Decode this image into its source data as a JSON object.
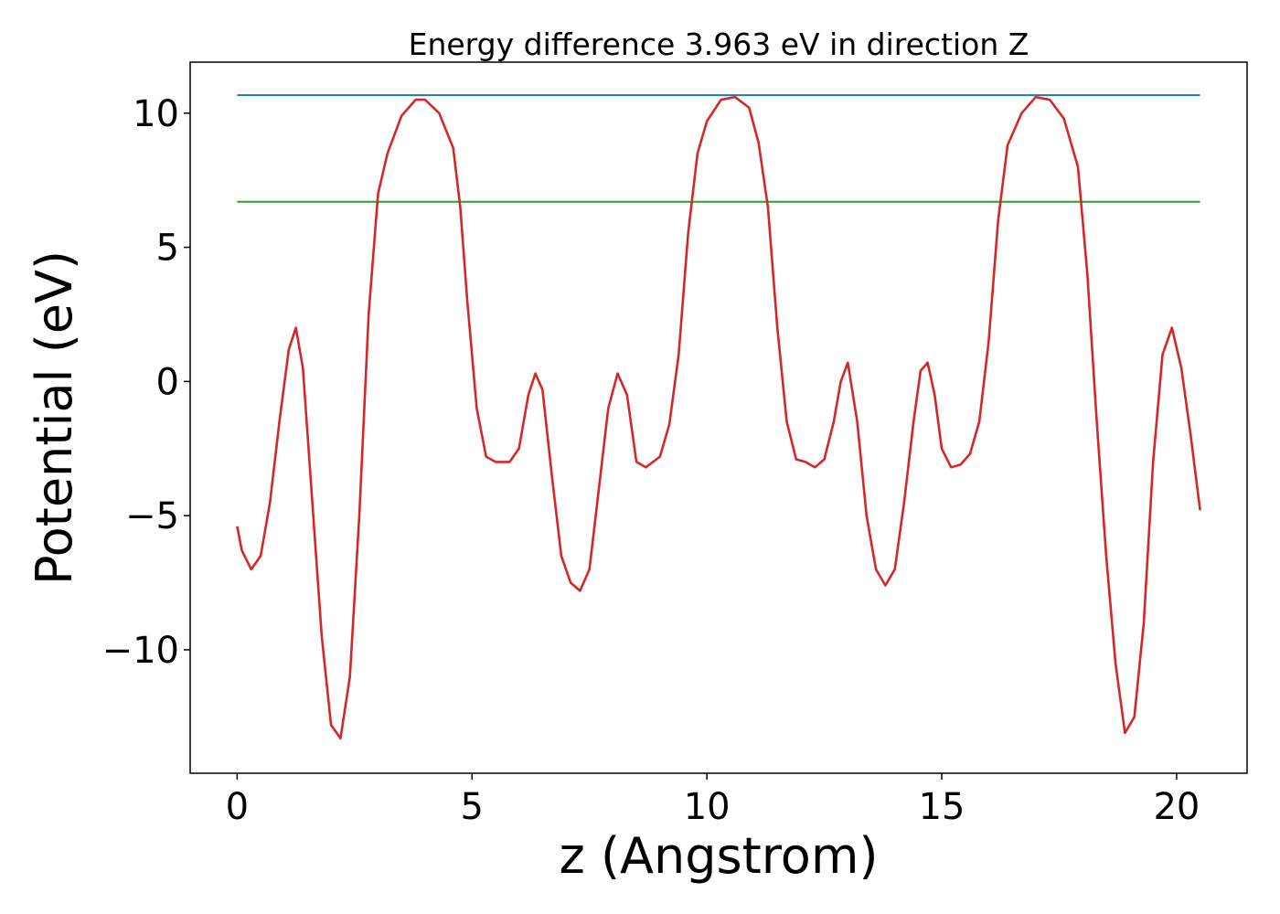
{
  "chart_data": {
    "type": "line",
    "title": "Energy difference 3.963 eV in direction Z",
    "xlabel": "z (Angstrom)",
    "ylabel": "Potential (eV)",
    "xlim": [
      -1.0,
      21.5
    ],
    "ylim": [
      -14.6,
      11.9
    ],
    "xticks": [
      0,
      5,
      10,
      15,
      20
    ],
    "xtick_labels": [
      "0",
      "5",
      "10",
      "15",
      "20"
    ],
    "yticks": [
      10,
      5,
      0,
      -5,
      -10
    ],
    "ytick_labels": [
      "10",
      "5",
      "0",
      "−5",
      "−10"
    ],
    "grid": false,
    "series": [
      {
        "color": "#d62728",
        "x": [
          0.0,
          0.1,
          0.3,
          0.5,
          0.7,
          0.9,
          1.1,
          1.25,
          1.4,
          1.6,
          1.8,
          2.0,
          2.2,
          2.4,
          2.6,
          2.8,
          3.0,
          3.2,
          3.5,
          3.8,
          4.0,
          4.3,
          4.6,
          4.75,
          4.9,
          5.1,
          5.3,
          5.5,
          5.8,
          6.0,
          6.2,
          6.35,
          6.5,
          6.7,
          6.9,
          7.1,
          7.3,
          7.5,
          7.7,
          7.9,
          8.1,
          8.3,
          8.5,
          8.7,
          9.0,
          9.2,
          9.4,
          9.6,
          9.8,
          10.0,
          10.3,
          10.6,
          10.9,
          11.1,
          11.3,
          11.5,
          11.7,
          11.9,
          12.1,
          12.3,
          12.5,
          12.7,
          12.85,
          13.0,
          13.2,
          13.4,
          13.6,
          13.8,
          14.0,
          14.2,
          14.4,
          14.55,
          14.7,
          14.85,
          15.0,
          15.2,
          15.4,
          15.6,
          15.8,
          16.0,
          16.2,
          16.4,
          16.7,
          17.0,
          17.3,
          17.6,
          17.9,
          18.1,
          18.3,
          18.5,
          18.7,
          18.9,
          19.1,
          19.3,
          19.5,
          19.7,
          19.9,
          20.1,
          20.3,
          20.5
        ],
        "values": [
          -5.4,
          -6.3,
          -7.0,
          -6.5,
          -4.5,
          -1.5,
          1.2,
          2.0,
          0.5,
          -4.5,
          -9.5,
          -12.8,
          -13.3,
          -11.0,
          -5.0,
          2.5,
          7.0,
          8.5,
          9.9,
          10.5,
          10.5,
          10.0,
          8.7,
          6.5,
          3.0,
          -1.0,
          -2.8,
          -3.0,
          -3.0,
          -2.5,
          -0.5,
          0.3,
          -0.3,
          -3.5,
          -6.5,
          -7.5,
          -7.8,
          -7.0,
          -4.0,
          -1.0,
          0.3,
          -0.5,
          -3.0,
          -3.2,
          -2.8,
          -1.6,
          1.0,
          5.5,
          8.5,
          9.7,
          10.5,
          10.6,
          10.2,
          8.9,
          6.5,
          2.0,
          -1.5,
          -2.9,
          -3.0,
          -3.2,
          -2.9,
          -1.5,
          0.0,
          0.7,
          -1.5,
          -5.0,
          -7.0,
          -7.6,
          -7.0,
          -4.5,
          -1.5,
          0.4,
          0.7,
          -0.5,
          -2.5,
          -3.2,
          -3.1,
          -2.7,
          -1.5,
          1.5,
          6.0,
          8.8,
          10.0,
          10.6,
          10.5,
          9.8,
          8.0,
          4.0,
          -1.5,
          -6.5,
          -10.5,
          -13.1,
          -12.5,
          -9.0,
          -3.0,
          1.0,
          2.0,
          0.5,
          -2.0,
          -4.8
        ]
      },
      {
        "color": "#1f77b4",
        "x": [
          0.0,
          20.5
        ],
        "values": [
          10.67,
          10.67
        ]
      },
      {
        "color": "#2ca02c",
        "x": [
          0.0,
          20.5
        ],
        "values": [
          6.7,
          6.7
        ]
      }
    ]
  }
}
